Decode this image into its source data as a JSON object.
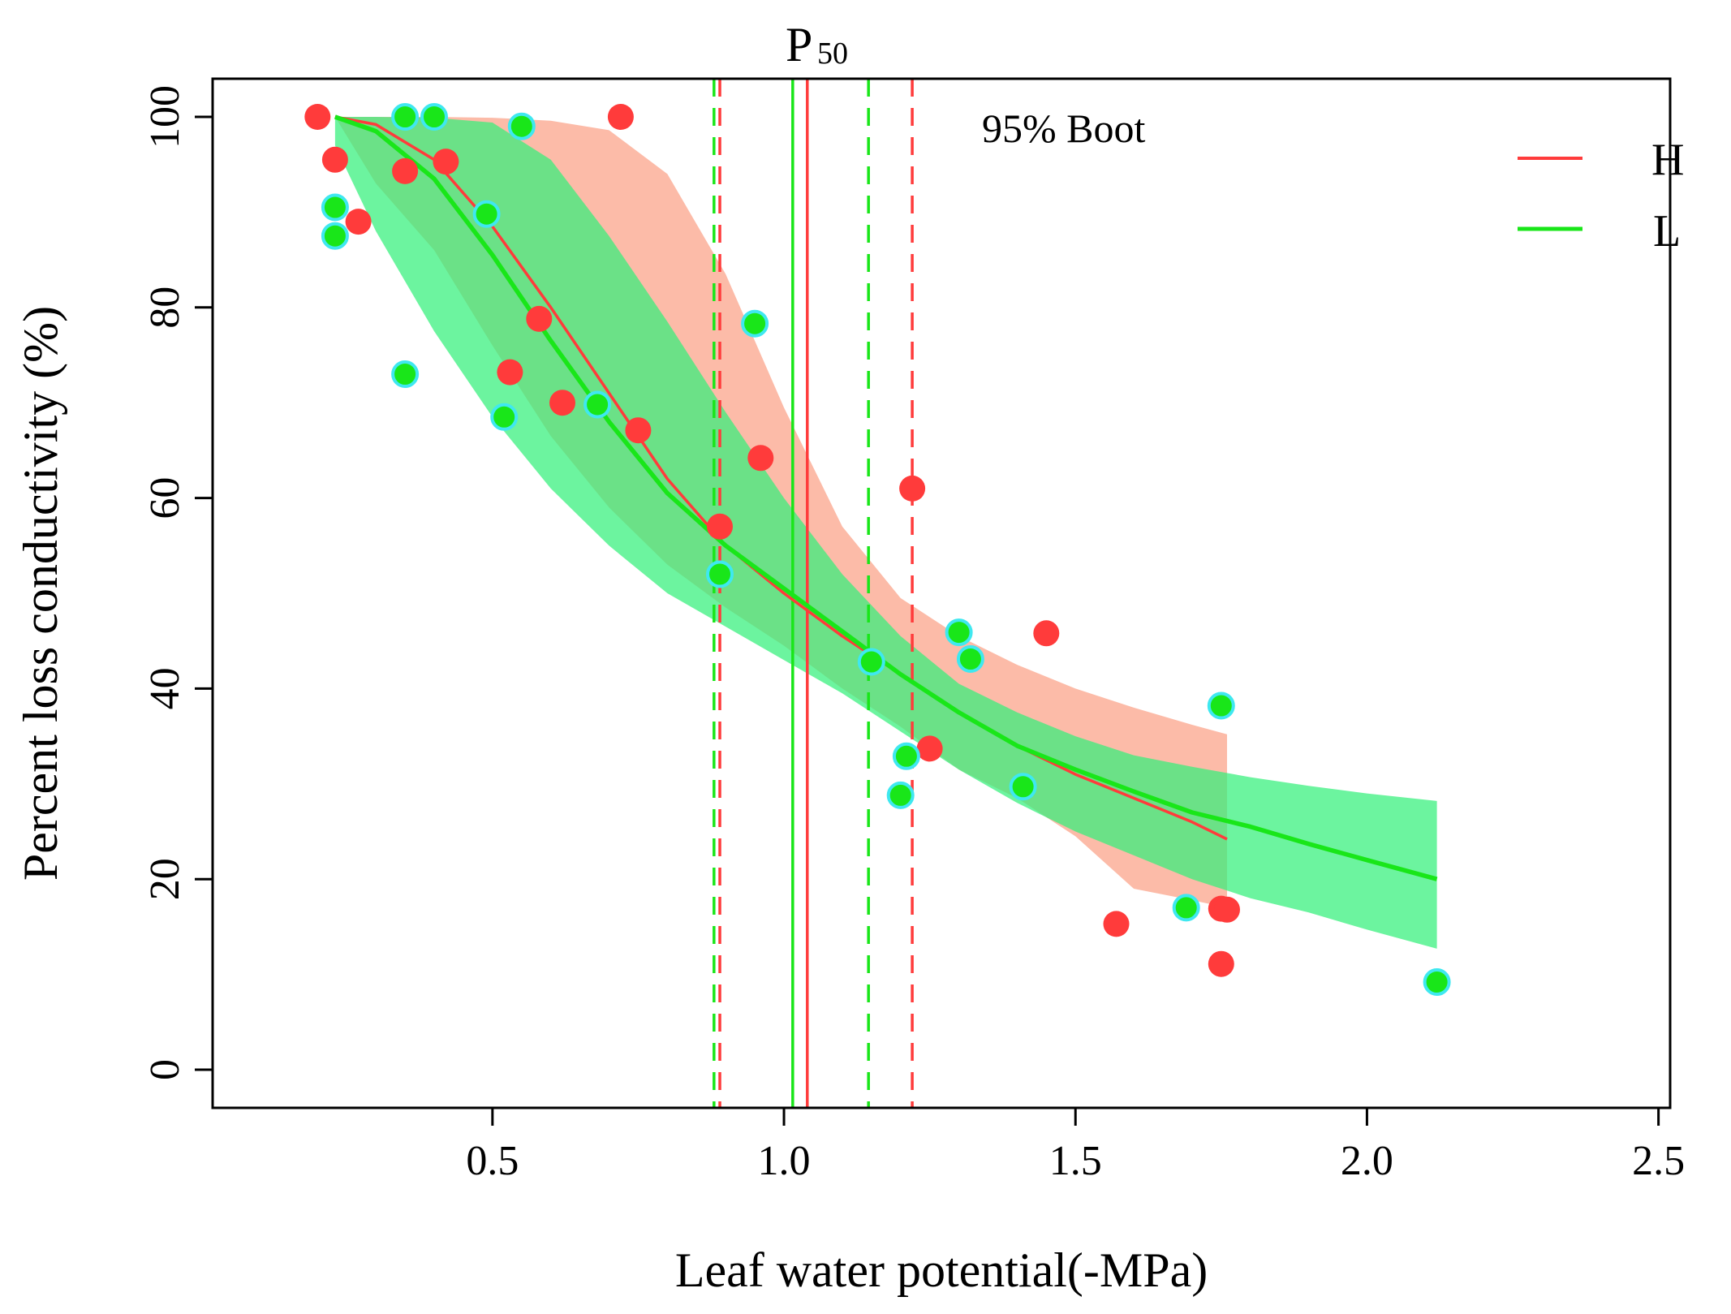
{
  "chart_data": {
    "type": "scatter",
    "title": "",
    "xlabel": "Leaf water potential(-MPa)",
    "ylabel": "Percent loss conductivity (%)",
    "xlim": [
      0.02,
      2.52
    ],
    "ylim": [
      -4,
      104
    ],
    "xticks": [
      0.5,
      1.0,
      1.5,
      2.0,
      2.5
    ],
    "xtick_labels": [
      "0.5",
      "1.0",
      "1.5",
      "2.0",
      "2.5"
    ],
    "yticks": [
      0,
      20,
      40,
      60,
      80,
      100
    ],
    "ytick_labels": [
      "0",
      "20",
      "40",
      "60",
      "80",
      "100"
    ],
    "annotation": "95% Boot",
    "p50": {
      "label_main": "P",
      "label_sub": "50"
    },
    "legend": {
      "position": "top-right",
      "entries": [
        {
          "label": "H",
          "color": "#ff3b3b"
        },
        {
          "label": "L",
          "color": "#19e619"
        }
      ]
    },
    "vlines": [
      {
        "series": "L",
        "x": 1.015,
        "style": "solid",
        "color": "#19e619"
      },
      {
        "series": "H",
        "x": 1.04,
        "style": "solid",
        "color": "#ff3b3b"
      },
      {
        "series": "L",
        "x": 0.88,
        "style": "dashed",
        "color": "#19e619"
      },
      {
        "series": "H",
        "x": 0.89,
        "style": "dashed",
        "color": "#ff3b3b"
      },
      {
        "series": "L",
        "x": 1.145,
        "style": "dashed",
        "color": "#19e619"
      },
      {
        "series": "H",
        "x": 1.22,
        "style": "dashed",
        "color": "#ff3b3b"
      }
    ],
    "series": [
      {
        "name": "H",
        "color": "#ff3b3b",
        "band_color": "#fcb49e",
        "curve": {
          "x": [
            0.23,
            0.3,
            0.4,
            0.5,
            0.6,
            0.7,
            0.8,
            0.9,
            1.0,
            1.1,
            1.2,
            1.3,
            1.4,
            1.5,
            1.6,
            1.7,
            1.76
          ],
          "y": [
            100,
            99.2,
            95.5,
            88.5,
            80,
            71,
            62,
            55,
            50,
            45.5,
            41.5,
            37.5,
            34,
            31,
            28.5,
            26,
            24.2
          ]
        },
        "band": {
          "x": [
            0.23,
            0.3,
            0.4,
            0.5,
            0.6,
            0.7,
            0.8,
            0.9,
            1.0,
            1.1,
            1.2,
            1.3,
            1.4,
            1.5,
            1.6,
            1.7,
            1.76
          ],
          "upper": [
            100,
            100,
            100,
            99.9,
            99.6,
            98.6,
            94,
            83.5,
            69.5,
            57,
            49.5,
            45.5,
            42.5,
            40,
            38,
            36.2,
            35.2
          ],
          "lower": [
            100,
            93,
            86,
            76,
            66.5,
            59,
            53,
            48.5,
            44.5,
            40,
            36,
            31.5,
            28.5,
            24.5,
            19,
            17.8,
            17
          ]
        },
        "points": {
          "x": [
            0.2,
            0.23,
            0.27,
            0.35,
            0.42,
            0.53,
            0.58,
            0.62,
            0.72,
            0.75,
            0.89,
            0.96,
            1.22,
            1.25,
            1.45,
            1.57,
            1.75,
            1.76,
            1.75
          ],
          "y": [
            100,
            95.5,
            89,
            94.3,
            95.3,
            73.2,
            78.8,
            70,
            100,
            67.1,
            57,
            64.2,
            61,
            33.7,
            45.8,
            15.3,
            16.9,
            16.8,
            11.1
          ]
        }
      },
      {
        "name": "L",
        "color": "#19e619",
        "band_color": "#33f07a",
        "curve": {
          "x": [
            0.23,
            0.3,
            0.4,
            0.5,
            0.6,
            0.7,
            0.8,
            0.9,
            1.0,
            1.1,
            1.2,
            1.3,
            1.4,
            1.5,
            1.6,
            1.7,
            1.8,
            1.9,
            2.0,
            2.12
          ],
          "y": [
            100,
            98.5,
            93.5,
            85.5,
            76.5,
            68,
            60.5,
            55,
            50.5,
            46,
            41.5,
            37.5,
            34,
            31.5,
            29.2,
            27,
            25.5,
            23.7,
            22,
            20
          ]
        },
        "band": {
          "x": [
            0.23,
            0.3,
            0.4,
            0.5,
            0.6,
            0.7,
            0.8,
            0.9,
            1.0,
            1.1,
            1.2,
            1.3,
            1.4,
            1.5,
            1.6,
            1.7,
            1.8,
            1.9,
            2.0,
            2.12
          ],
          "upper": [
            100,
            100,
            99.9,
            99.4,
            95.5,
            87.5,
            78.5,
            69,
            60,
            52,
            45.5,
            40.5,
            37.5,
            35,
            33,
            31.8,
            30.7,
            29.8,
            29,
            28.2
          ],
          "lower": [
            97,
            88,
            77.5,
            68.5,
            61,
            55,
            50,
            46.5,
            43,
            39.5,
            35.5,
            31.5,
            28,
            25,
            22.5,
            20,
            18,
            16.5,
            14.7,
            12.7
          ]
        },
        "points": {
          "x": [
            0.23,
            0.23,
            0.35,
            0.35,
            0.4,
            0.49,
            0.52,
            0.55,
            0.68,
            0.89,
            0.95,
            1.15,
            1.2,
            1.21,
            1.3,
            1.32,
            1.41,
            1.69,
            1.75,
            2.12
          ],
          "y": [
            90.5,
            87.5,
            100,
            73,
            100,
            89.8,
            68.5,
            99,
            69.8,
            52,
            78.3,
            42.8,
            28.8,
            32.9,
            45.9,
            43.1,
            29.7,
            17,
            38.2,
            9.2
          ]
        }
      }
    ]
  }
}
